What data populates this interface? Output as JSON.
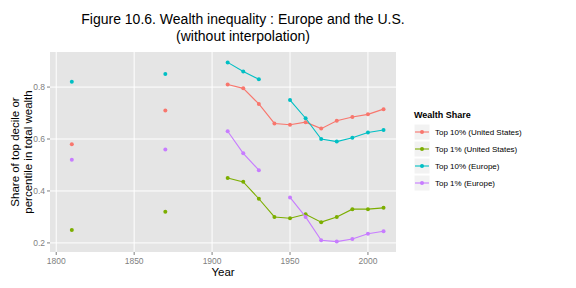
{
  "chart_data": {
    "type": "line",
    "title": "Figure 10.6. Wealth inequality : Europe and the U.S.",
    "subtitle": "(without interpolation)",
    "x_label": "Year",
    "y_label": "Share of top decile or\npercentile in total wealth",
    "legend_title": "Wealth Share",
    "x": [
      1810,
      1870,
      1910,
      1920,
      1930,
      1940,
      1950,
      1960,
      1970,
      1980,
      1990,
      2000,
      2010
    ],
    "series": [
      {
        "name": "Top 10% (United States)",
        "color": "#F8766D",
        "marker": "circle",
        "line_style": "solid",
        "values": [
          0.58,
          0.71,
          0.81,
          0.795,
          0.735,
          0.66,
          0.655,
          0.665,
          0.64,
          0.67,
          0.685,
          0.695,
          0.715
        ]
      },
      {
        "name": "Top 1% (United States)",
        "color": "#7CAE00",
        "marker": "circle",
        "line_style": "solid",
        "values": [
          0.25,
          0.32,
          0.45,
          0.435,
          0.37,
          0.3,
          0.295,
          0.31,
          0.28,
          0.3,
          0.33,
          0.33,
          0.335
        ]
      },
      {
        "name": "Top 10% (Europe)",
        "color": "#00BFC4",
        "marker": "circle",
        "line_style": "solid",
        "values": [
          0.82,
          0.85,
          0.895,
          0.86,
          0.83,
          null,
          0.75,
          0.68,
          0.6,
          0.59,
          0.605,
          0.625,
          0.635
        ]
      },
      {
        "name": "Top 1% (Europe)",
        "color": "#C77CFF",
        "marker": "circle",
        "line_style": "solid",
        "values": [
          0.52,
          0.56,
          0.63,
          0.545,
          0.48,
          null,
          0.375,
          0.3,
          0.21,
          0.205,
          0.215,
          0.235,
          0.245
        ]
      }
    ],
    "xlim": [
      1796,
      2018
    ],
    "xticks": [
      1800,
      1850,
      1900,
      1950,
      2000
    ],
    "ylim": [
      0.165,
      0.935
    ],
    "yticks": [
      0.2,
      0.4,
      0.6,
      0.8
    ],
    "grid": true,
    "legend": "right"
  }
}
